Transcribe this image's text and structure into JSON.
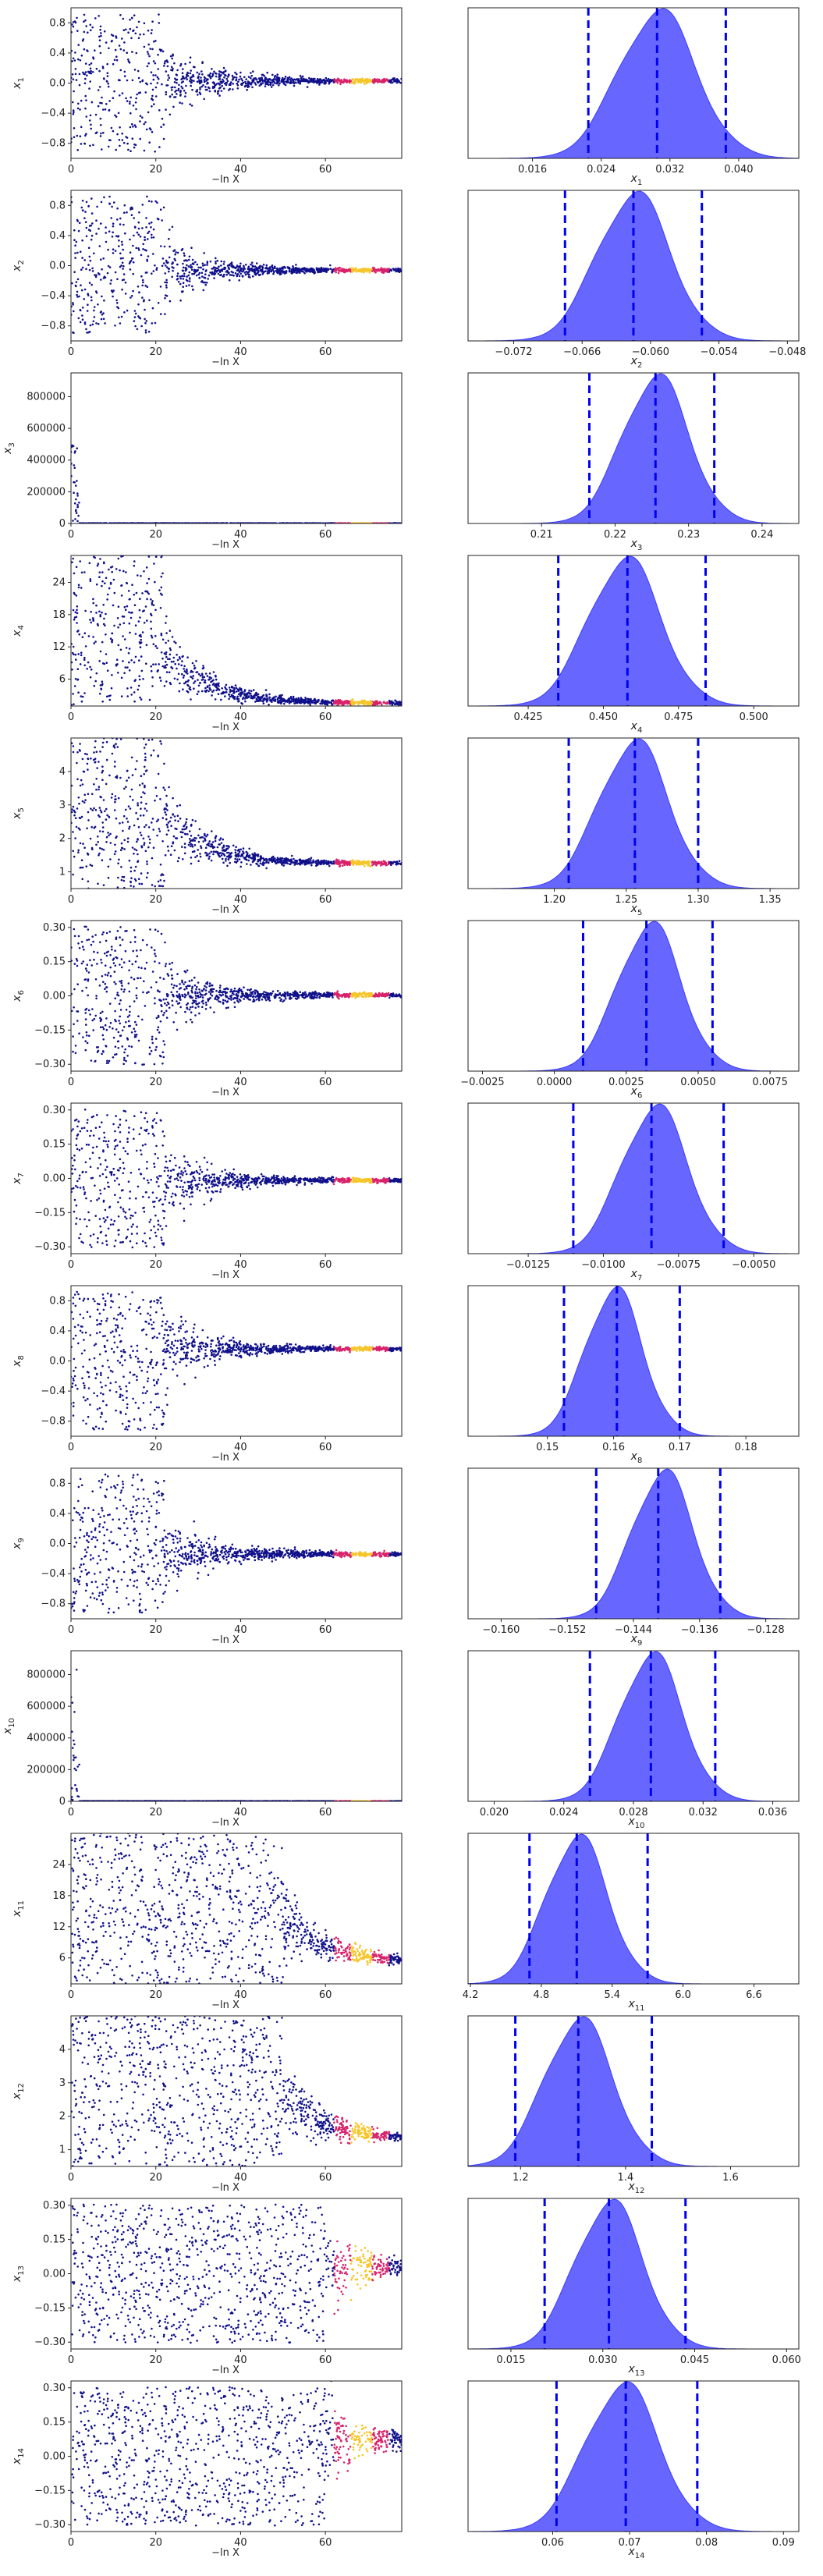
{
  "chart_data": [
    {
      "type": "scatter",
      "panel": "trace",
      "row": 1,
      "ylabel": "x1",
      "xlabel": "−ln X",
      "xlim": [
        0,
        78
      ],
      "ylim": [
        -1,
        1
      ],
      "x_ticks": [
        0,
        20,
        40,
        60
      ],
      "y_ticks": [
        -0.8,
        -0.4,
        0.0,
        0.4,
        0.8
      ],
      "y_tick_labels": [
        "−0.8",
        "−0.4",
        "0.0",
        "0.4",
        "0.8"
      ],
      "converged_value": 0.03,
      "burn_in_end": 22,
      "early_spread": 0.9
    },
    {
      "type": "area",
      "panel": "posterior",
      "row": 1,
      "xlabel": "x1",
      "xlim": [
        0.0085,
        0.047
      ],
      "x_ticks": [
        0.016,
        0.024,
        0.032,
        0.04
      ],
      "x_tick_labels": [
        "0.016",
        "0.024",
        "0.032",
        "0.040"
      ],
      "peak": 0.0305,
      "sigma": 0.0045,
      "quantiles": [
        0.0225,
        0.0305,
        0.0385
      ],
      "ylabel": "",
      "title": ""
    },
    {
      "type": "scatter",
      "panel": "trace",
      "row": 2,
      "ylabel": "x2",
      "xlabel": "−ln X",
      "xlim": [
        0,
        78
      ],
      "ylim": [
        -1,
        1
      ],
      "x_ticks": [
        0,
        20,
        40,
        60
      ],
      "y_ticks": [
        -0.8,
        -0.4,
        0.0,
        0.4,
        0.8
      ],
      "y_tick_labels": [
        "−0.8",
        "−0.4",
        "0.0",
        "0.4",
        "0.8"
      ],
      "converged_value": -0.06,
      "burn_in_end": 22,
      "early_spread": 0.9
    },
    {
      "type": "area",
      "panel": "posterior",
      "row": 2,
      "xlabel": "x2",
      "xlim": [
        -0.076,
        -0.047
      ],
      "x_ticks": [
        -0.072,
        -0.066,
        -0.06,
        -0.054,
        -0.048
      ],
      "x_tick_labels": [
        "−0.072",
        "−0.066",
        "−0.060",
        "−0.054",
        "−0.048"
      ],
      "peak": -0.0615,
      "sigma": 0.0032,
      "quantiles": [
        -0.0675,
        -0.0615,
        -0.0555
      ],
      "ylabel": "",
      "title": ""
    },
    {
      "type": "scatter",
      "panel": "trace",
      "row": 3,
      "ylabel": "x3",
      "xlabel": "−ln X",
      "xlim": [
        0,
        78
      ],
      "ylim": [
        0,
        950000
      ],
      "x_ticks": [
        0,
        20,
        40,
        60
      ],
      "y_ticks": [
        0,
        200000,
        400000,
        600000,
        800000
      ],
      "y_tick_labels": [
        "0",
        "200000",
        "400000",
        "600000",
        "800000"
      ],
      "converged_value": 0.22,
      "burn_in_end": 2,
      "early_spread": 900000
    },
    {
      "type": "area",
      "panel": "posterior",
      "row": 3,
      "xlabel": "x3",
      "xlim": [
        0.2,
        0.245
      ],
      "x_ticks": [
        0.21,
        0.22,
        0.23,
        0.24
      ],
      "x_tick_labels": [
        "0.21",
        "0.22",
        "0.23",
        "0.24"
      ],
      "peak": 0.2255,
      "sigma": 0.0045,
      "quantiles": [
        0.2165,
        0.2255,
        0.2335
      ],
      "ylabel": "",
      "title": ""
    },
    {
      "type": "scatter",
      "panel": "trace",
      "row": 4,
      "ylabel": "x4",
      "xlabel": "−ln X",
      "xlim": [
        0,
        78
      ],
      "ylim": [
        1,
        29
      ],
      "x_ticks": [
        0,
        20,
        40,
        60
      ],
      "y_ticks": [
        6,
        12,
        18,
        24
      ],
      "y_tick_labels": [
        "6",
        "12",
        "18",
        "24"
      ],
      "converged_value": 1.5,
      "burn_in_end": 22,
      "early_spread": 28
    },
    {
      "type": "area",
      "panel": "posterior",
      "row": 4,
      "xlabel": "x4",
      "xlim": [
        0.405,
        0.515
      ],
      "x_ticks": [
        0.425,
        0.45,
        0.475,
        0.5
      ],
      "x_tick_labels": [
        "0.425",
        "0.450",
        "0.475",
        "0.500"
      ],
      "peak": 0.457,
      "sigma": 0.012,
      "quantiles": [
        0.435,
        0.458,
        0.484
      ],
      "ylabel": "",
      "title": ""
    },
    {
      "type": "scatter",
      "panel": "trace",
      "row": 5,
      "ylabel": "x5",
      "xlabel": "−ln X",
      "xlim": [
        0,
        78
      ],
      "ylim": [
        0.5,
        5
      ],
      "x_ticks": [
        0,
        20,
        40,
        60
      ],
      "y_ticks": [
        1,
        2,
        3,
        4
      ],
      "y_tick_labels": [
        "1",
        "2",
        "3",
        "4"
      ],
      "converged_value": 1.25,
      "burn_in_end": 22,
      "early_spread": 4.5
    },
    {
      "type": "area",
      "panel": "posterior",
      "row": 5,
      "xlabel": "x5",
      "xlim": [
        1.14,
        1.37
      ],
      "x_ticks": [
        1.2,
        1.25,
        1.3,
        1.35
      ],
      "x_tick_labels": [
        "1.20",
        "1.25",
        "1.30",
        "1.35"
      ],
      "peak": 1.255,
      "sigma": 0.024,
      "quantiles": [
        1.21,
        1.256,
        1.3
      ],
      "ylabel": "",
      "title": ""
    },
    {
      "type": "scatter",
      "panel": "trace",
      "row": 6,
      "ylabel": "x6",
      "xlabel": "−ln X",
      "xlim": [
        0,
        78
      ],
      "ylim": [
        -0.33,
        0.33
      ],
      "x_ticks": [
        0,
        20,
        40,
        60
      ],
      "y_ticks": [
        -0.3,
        -0.15,
        0.0,
        0.15,
        0.3
      ],
      "y_tick_labels": [
        "−0.30",
        "−0.15",
        "0.00",
        "0.15",
        "0.30"
      ],
      "converged_value": 0.003,
      "burn_in_end": 22,
      "early_spread": 0.3
    },
    {
      "type": "area",
      "panel": "posterior",
      "row": 6,
      "xlabel": "x6",
      "xlim": [
        -0.003,
        0.0085
      ],
      "x_ticks": [
        -0.0025,
        0.0,
        0.0025,
        0.005,
        0.0075
      ],
      "x_tick_labels": [
        "−0.0025",
        "0.0000",
        "0.0025",
        "0.0050",
        "0.0075"
      ],
      "peak": 0.0033,
      "sigma": 0.0011,
      "quantiles": [
        0.001,
        0.0032,
        0.0055
      ],
      "ylabel": "",
      "title": ""
    },
    {
      "type": "scatter",
      "panel": "trace",
      "row": 7,
      "ylabel": "x7",
      "xlabel": "−ln X",
      "xlim": [
        0,
        78
      ],
      "ylim": [
        -0.33,
        0.33
      ],
      "x_ticks": [
        0,
        20,
        40,
        60
      ],
      "y_ticks": [
        -0.3,
        -0.15,
        0.0,
        0.15,
        0.3
      ],
      "y_tick_labels": [
        "−0.30",
        "−0.15",
        "0.00",
        "0.15",
        "0.30"
      ],
      "converged_value": -0.008,
      "burn_in_end": 22,
      "early_spread": 0.3
    },
    {
      "type": "area",
      "panel": "posterior",
      "row": 7,
      "xlabel": "x7",
      "xlim": [
        -0.0145,
        -0.0035
      ],
      "x_ticks": [
        -0.0125,
        -0.01,
        -0.0075,
        -0.005
      ],
      "x_tick_labels": [
        "−0.0125",
        "−0.0100",
        "−0.0075",
        "−0.0050"
      ],
      "peak": -0.0083,
      "sigma": 0.0011,
      "quantiles": [
        -0.011,
        -0.0084,
        -0.006
      ],
      "ylabel": "",
      "title": ""
    },
    {
      "type": "scatter",
      "panel": "trace",
      "row": 8,
      "ylabel": "x8",
      "xlabel": "−ln X",
      "xlim": [
        0,
        78
      ],
      "ylim": [
        -1,
        1
      ],
      "x_ticks": [
        0,
        20,
        40,
        60
      ],
      "y_ticks": [
        -0.8,
        -0.4,
        0.0,
        0.4,
        0.8
      ],
      "y_tick_labels": [
        "−0.8",
        "−0.4",
        "0.0",
        "0.4",
        "0.8"
      ],
      "converged_value": 0.16,
      "burn_in_end": 22,
      "early_spread": 0.9
    },
    {
      "type": "area",
      "panel": "posterior",
      "row": 8,
      "xlabel": "x8",
      "xlim": [
        0.138,
        0.188
      ],
      "x_ticks": [
        0.15,
        0.16,
        0.17,
        0.18
      ],
      "x_tick_labels": [
        "0.15",
        "0.16",
        "0.17",
        "0.18"
      ],
      "peak": 0.16,
      "sigma": 0.0043,
      "quantiles": [
        0.1525,
        0.1605,
        0.17
      ],
      "ylabel": "",
      "title": ""
    },
    {
      "type": "scatter",
      "panel": "trace",
      "row": 9,
      "ylabel": "x9",
      "xlabel": "−ln X",
      "xlim": [
        0,
        78
      ],
      "ylim": [
        -1,
        1
      ],
      "x_ticks": [
        0,
        20,
        40,
        60
      ],
      "y_ticks": [
        -0.8,
        -0.4,
        0.0,
        0.4,
        0.8
      ],
      "y_tick_labels": [
        "−0.8",
        "−0.4",
        "0.0",
        "0.4",
        "0.8"
      ],
      "converged_value": -0.14,
      "burn_in_end": 22,
      "early_spread": 0.9
    },
    {
      "type": "area",
      "panel": "posterior",
      "row": 9,
      "xlabel": "x9",
      "xlim": [
        -0.164,
        -0.124
      ],
      "x_ticks": [
        -0.16,
        -0.152,
        -0.144,
        -0.136,
        -0.128
      ],
      "x_tick_labels": [
        "−0.160",
        "−0.152",
        "−0.144",
        "−0.136",
        "−0.128"
      ],
      "peak": -0.1405,
      "sigma": 0.0037,
      "quantiles": [
        -0.1485,
        -0.141,
        -0.1335
      ],
      "ylabel": "",
      "title": ""
    },
    {
      "type": "scatter",
      "panel": "trace",
      "row": 10,
      "ylabel": "x10",
      "xlabel": "−ln X",
      "xlim": [
        0,
        78
      ],
      "ylim": [
        0,
        950000
      ],
      "x_ticks": [
        0,
        20,
        40,
        60
      ],
      "y_ticks": [
        0,
        200000,
        400000,
        600000,
        800000
      ],
      "y_tick_labels": [
        "0",
        "200000",
        "400000",
        "600000",
        "800000"
      ],
      "converged_value": 0.029,
      "burn_in_end": 2,
      "early_spread": 900000
    },
    {
      "type": "area",
      "panel": "posterior",
      "row": 10,
      "xlabel": "x10",
      "xlim": [
        0.0185,
        0.0375
      ],
      "x_ticks": [
        0.02,
        0.024,
        0.028,
        0.032,
        0.036
      ],
      "x_tick_labels": [
        "0.020",
        "0.024",
        "0.028",
        "0.032",
        "0.036"
      ],
      "peak": 0.029,
      "sigma": 0.0018,
      "quantiles": [
        0.0255,
        0.029,
        0.0327
      ],
      "ylabel": "",
      "title": ""
    },
    {
      "type": "scatter",
      "panel": "trace",
      "row": 11,
      "ylabel": "x11",
      "xlabel": "−ln X",
      "xlim": [
        0,
        78
      ],
      "ylim": [
        1,
        30
      ],
      "x_ticks": [
        0,
        20,
        40,
        60
      ],
      "y_ticks": [
        6,
        12,
        18,
        24
      ],
      "y_tick_labels": [
        "6",
        "12",
        "18",
        "24"
      ],
      "converged_value": 5.2,
      "burn_in_end": 50,
      "early_spread": 28
    },
    {
      "type": "area",
      "panel": "posterior",
      "row": 11,
      "xlabel": "x11",
      "xlim": [
        4.18,
        6.98
      ],
      "x_ticks": [
        4.2,
        4.8,
        5.4,
        6.0,
        6.6
      ],
      "x_tick_labels": [
        "4.2",
        "4.8",
        "5.4",
        "6.0",
        "6.6"
      ],
      "peak": 5.1,
      "sigma": 0.26,
      "quantiles": [
        4.7,
        5.1,
        5.7
      ],
      "ylabel": "",
      "title": ""
    },
    {
      "type": "scatter",
      "panel": "trace",
      "row": 12,
      "ylabel": "x12",
      "xlabel": "−ln X",
      "xlim": [
        0,
        78
      ],
      "ylim": [
        0.5,
        5
      ],
      "x_ticks": [
        0,
        20,
        40,
        60
      ],
      "y_ticks": [
        1,
        2,
        3,
        4
      ],
      "y_tick_labels": [
        "1",
        "2",
        "3",
        "4"
      ],
      "converged_value": 1.3,
      "burn_in_end": 50,
      "early_spread": 4.5
    },
    {
      "type": "area",
      "panel": "posterior",
      "row": 12,
      "xlabel": "x12",
      "xlim": [
        1.1,
        1.73
      ],
      "x_ticks": [
        1.2,
        1.4,
        1.6
      ],
      "x_tick_labels": [
        "1.2",
        "1.4",
        "1.6"
      ],
      "peak": 1.31,
      "sigma": 0.065,
      "quantiles": [
        1.19,
        1.31,
        1.45
      ],
      "ylabel": "",
      "title": ""
    },
    {
      "type": "scatter",
      "panel": "trace",
      "row": 13,
      "ylabel": "x13",
      "xlabel": "−ln X",
      "xlim": [
        0,
        78
      ],
      "ylim": [
        -0.33,
        0.33
      ],
      "x_ticks": [
        0,
        20,
        40,
        60
      ],
      "y_ticks": [
        -0.3,
        -0.15,
        0.0,
        0.15,
        0.3
      ],
      "y_tick_labels": [
        "−0.30",
        "−0.15",
        "0.00",
        "0.15",
        "0.30"
      ],
      "converged_value": 0.03,
      "burn_in_end": 60,
      "early_spread": 0.3
    },
    {
      "type": "area",
      "panel": "posterior",
      "row": 13,
      "xlabel": "x13",
      "xlim": [
        0.008,
        0.062
      ],
      "x_ticks": [
        0.015,
        0.03,
        0.045,
        0.06
      ],
      "x_tick_labels": [
        "0.015",
        "0.030",
        "0.045",
        "0.060"
      ],
      "peak": 0.031,
      "sigma": 0.0055,
      "quantiles": [
        0.0205,
        0.031,
        0.0435
      ],
      "ylabel": "",
      "title": ""
    },
    {
      "type": "scatter",
      "panel": "trace",
      "row": 14,
      "ylabel": "x14",
      "xlabel": "−ln X",
      "xlim": [
        0,
        78
      ],
      "ylim": [
        -0.33,
        0.33
      ],
      "x_ticks": [
        0,
        20,
        40,
        60
      ],
      "y_ticks": [
        -0.3,
        -0.15,
        0.0,
        0.15,
        0.3
      ],
      "y_tick_labels": [
        "−0.30",
        "−0.15",
        "0.00",
        "0.15",
        "0.30"
      ],
      "converged_value": 0.07,
      "burn_in_end": 60,
      "early_spread": 0.3
    },
    {
      "type": "area",
      "panel": "posterior",
      "row": 14,
      "xlabel": "x14",
      "xlim": [
        0.049,
        0.092
      ],
      "x_ticks": [
        0.06,
        0.07,
        0.08,
        0.09
      ],
      "x_tick_labels": [
        "0.06",
        "0.07",
        "0.08",
        "0.09"
      ],
      "peak": 0.069,
      "sigma": 0.0048,
      "quantiles": [
        0.0605,
        0.0695,
        0.0788
      ],
      "ylabel": "",
      "title": ""
    }
  ],
  "colors": {
    "trace_points": "#10108a",
    "trace_hot_1": "#d8226a",
    "trace_hot_2": "#f6c52a",
    "posterior_fill": "#5757ff",
    "posterior_edge": "#3b3bff",
    "quantile_line": "#0000ee",
    "axis": "#222222"
  }
}
